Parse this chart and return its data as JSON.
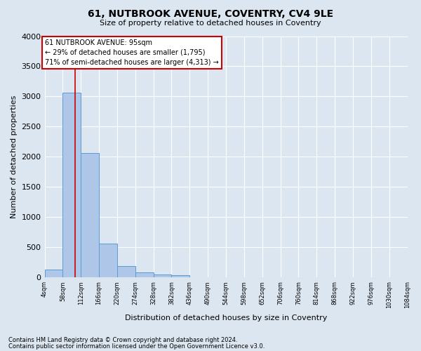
{
  "title": "61, NUTBROOK AVENUE, COVENTRY, CV4 9LE",
  "subtitle": "Size of property relative to detached houses in Coventry",
  "xlabel": "Distribution of detached houses by size in Coventry",
  "ylabel": "Number of detached properties",
  "bin_edges": [
    4,
    58,
    112,
    166,
    220,
    274,
    328,
    382,
    436,
    490,
    544,
    598,
    652,
    706,
    760,
    814,
    868,
    922,
    976,
    1030,
    1084
  ],
  "bin_labels": [
    "4sqm",
    "58sqm",
    "112sqm",
    "166sqm",
    "220sqm",
    "274sqm",
    "328sqm",
    "382sqm",
    "436sqm",
    "490sqm",
    "544sqm",
    "598sqm",
    "652sqm",
    "706sqm",
    "760sqm",
    "814sqm",
    "868sqm",
    "922sqm",
    "976sqm",
    "1030sqm",
    "1084sqm"
  ],
  "bar_heights": [
    130,
    3060,
    2060,
    560,
    195,
    80,
    55,
    40,
    0,
    0,
    0,
    0,
    0,
    0,
    0,
    0,
    0,
    0,
    0,
    0
  ],
  "bar_color": "#aec6e8",
  "bar_edge_color": "#5b9bd5",
  "property_line_x": 95,
  "property_line_color": "#cc0000",
  "annotation_text": "61 NUTBROOK AVENUE: 95sqm\n← 29% of detached houses are smaller (1,795)\n71% of semi-detached houses are larger (4,313) →",
  "annotation_box_color": "#ffffff",
  "annotation_border_color": "#cc0000",
  "ylim": [
    0,
    4000
  ],
  "yticks": [
    0,
    500,
    1000,
    1500,
    2000,
    2500,
    3000,
    3500,
    4000
  ],
  "background_color": "#dce6f1",
  "plot_bg_color": "#dce6f1",
  "grid_color": "#ffffff",
  "footer_line1": "Contains HM Land Registry data © Crown copyright and database right 2024.",
  "footer_line2": "Contains public sector information licensed under the Open Government Licence v3.0."
}
